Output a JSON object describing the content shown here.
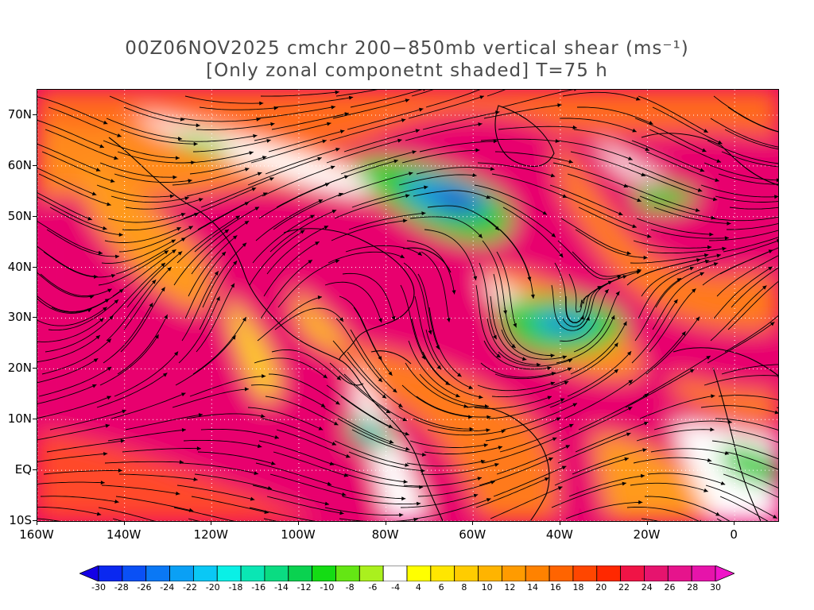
{
  "title": {
    "line1": "00Z06NOV2025 cmchr 200−850mb vertical shear (ms⁻¹)",
    "line2": "[Only zonal componetnt shaded] T=75 h"
  },
  "map": {
    "lat_labels": [
      "70N",
      "60N",
      "50N",
      "40N",
      "30N",
      "20N",
      "10N",
      "EQ",
      "10S"
    ],
    "lat_values": [
      70,
      60,
      50,
      40,
      30,
      20,
      10,
      0,
      -10
    ],
    "lon_labels": [
      "160W",
      "140W",
      "120W",
      "100W",
      "80W",
      "60W",
      "40W",
      "20W",
      "0"
    ],
    "lon_values": [
      -160,
      -140,
      -120,
      -100,
      -80,
      -60,
      -40,
      -20,
      0
    ],
    "lon_range": [
      -160,
      10
    ],
    "lat_range": [
      -10,
      75
    ],
    "graticule": "dotted white",
    "overlay": "streamlines of shear vector",
    "colors": {
      "strong_positive": "#e8006e",
      "positive": "#ff4a1a",
      "moderate": "#ff8c1a",
      "weak": "#ffd21a",
      "near_zero": "#ffffff",
      "negative": "#33cc33",
      "strong_negative": "#1a5acc"
    }
  },
  "colorbar": {
    "labels": [
      "-30",
      "-28",
      "-26",
      "-24",
      "-22",
      "-20",
      "-18",
      "-16",
      "-14",
      "-12",
      "-10",
      "-8",
      "-6",
      "-4",
      "4",
      "6",
      "8",
      "10",
      "12",
      "14",
      "16",
      "18",
      "20",
      "22",
      "24",
      "26",
      "28",
      "30"
    ],
    "colors": [
      "#1400e6",
      "#0a28f0",
      "#0a50f5",
      "#0a78f5",
      "#0aa0f5",
      "#0ac8f5",
      "#0af0e6",
      "#0ae6b4",
      "#0adc82",
      "#0ad250",
      "#14dc14",
      "#64e614",
      "#aaf01e",
      "#ffffff",
      "#ffff00",
      "#ffe600",
      "#ffcc00",
      "#ffb400",
      "#ff9b00",
      "#ff8200",
      "#ff6400",
      "#ff4600",
      "#ff2800",
      "#f01446",
      "#e6146e",
      "#e6148c",
      "#e614aa",
      "#f014c8"
    ]
  }
}
